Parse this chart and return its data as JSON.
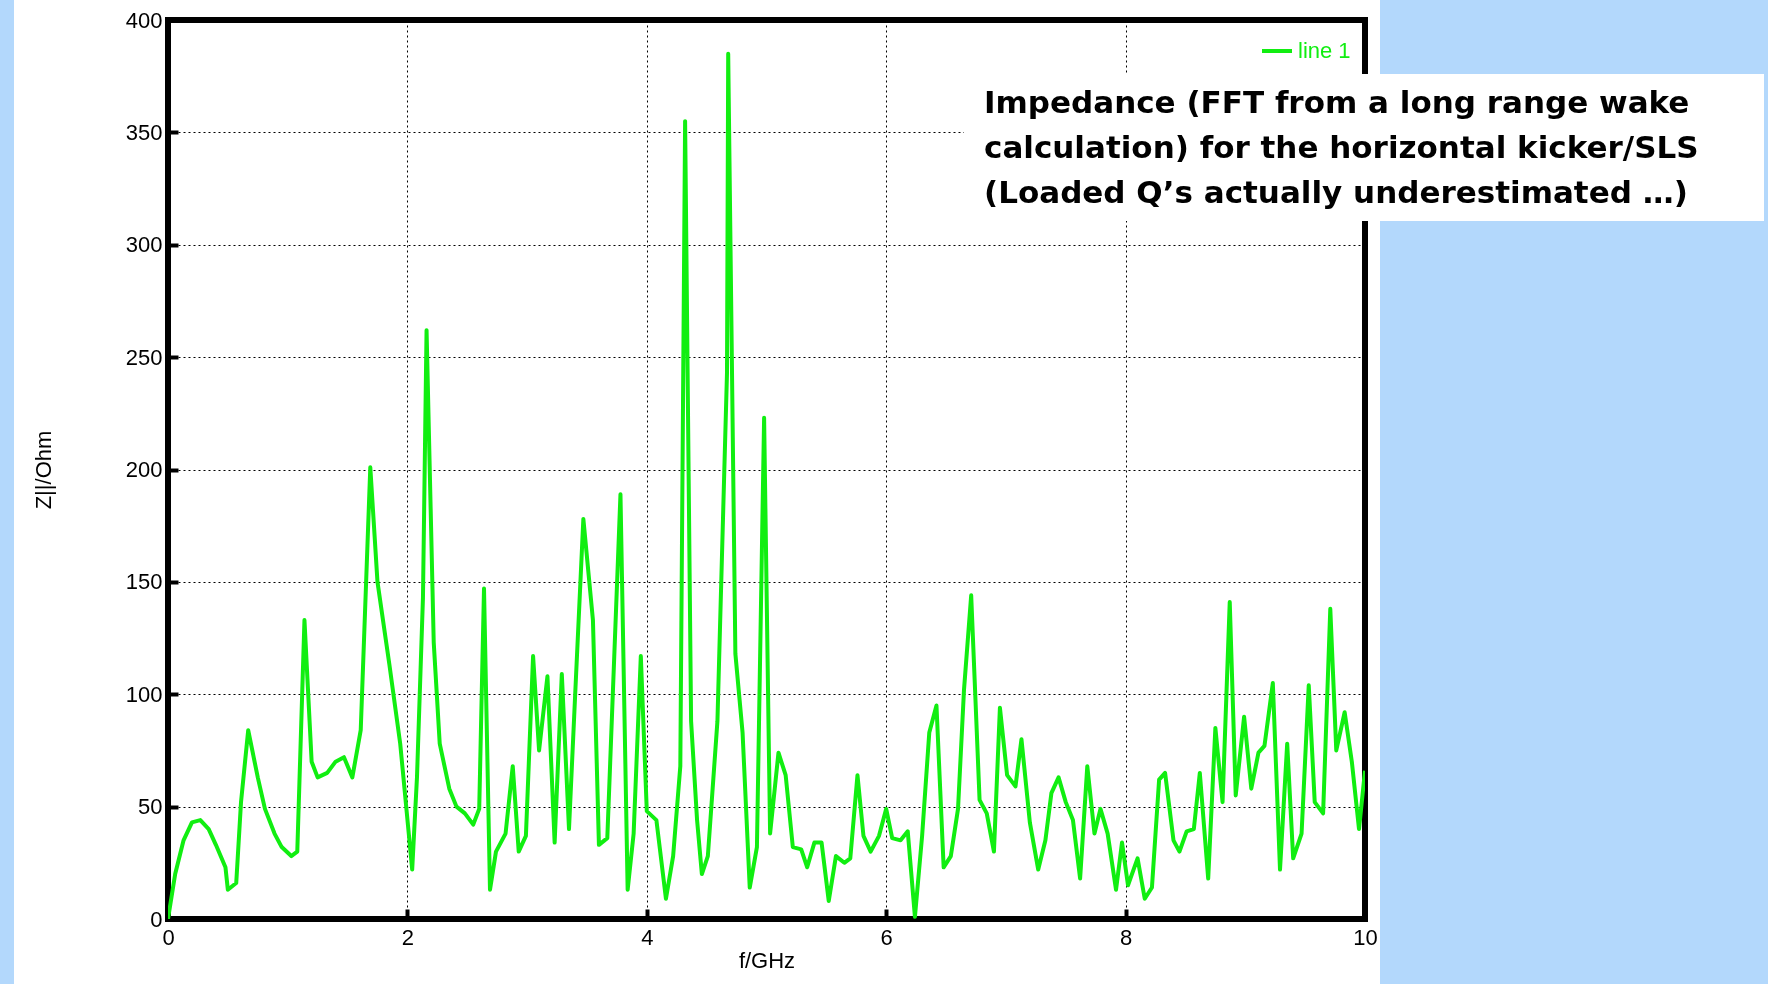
{
  "chart_data": {
    "type": "line",
    "xlabel": "f/GHz",
    "ylabel": "Z||/Ohm",
    "annotations": [
      "Impedance (FFT from a long range wake calculation) for the horizontal kicker/SLS (Loaded Q’s actually underestimated …)"
    ],
    "xlim": [
      0,
      10
    ],
    "xticks": [
      0,
      2,
      4,
      6,
      8,
      10
    ],
    "ylim": [
      0,
      400
    ],
    "yticks": [
      0,
      50,
      100,
      150,
      200,
      250,
      300,
      350,
      400
    ],
    "grid": true,
    "legend": "top right",
    "marker": "none",
    "line_style": "solid",
    "series": [
      {
        "name": "line 1",
        "color": "#11ee11",
        "x": [
          0,
          0.06,
          0.13,
          0.2,
          0.27,
          0.34,
          0.4,
          0.48,
          0.5,
          0.57,
          0.61,
          0.67,
          0.75,
          0.81,
          0.89,
          0.95,
          1.03,
          1.08,
          1.14,
          1.2,
          1.25,
          1.33,
          1.4,
          1.47,
          1.54,
          1.61,
          1.69,
          1.75,
          1.85,
          1.94,
          2.04,
          2.08,
          2.13,
          2.16,
          2.22,
          2.27,
          2.35,
          2.41,
          2.48,
          2.55,
          2.6,
          2.64,
          2.69,
          2.74,
          2.82,
          2.88,
          2.93,
          2.99,
          3.05,
          3.1,
          3.17,
          3.23,
          3.29,
          3.35,
          3.4,
          3.47,
          3.55,
          3.6,
          3.67,
          3.78,
          3.84,
          3.89,
          3.95,
          4.0,
          4.08,
          4.16,
          4.22,
          4.28,
          4.32,
          4.37,
          4.42,
          4.46,
          4.51,
          4.59,
          4.67,
          4.68,
          4.74,
          4.8,
          4.86,
          4.92,
          4.98,
          5.03,
          5.1,
          5.16,
          5.22,
          5.29,
          5.34,
          5.4,
          5.46,
          5.52,
          5.58,
          5.65,
          5.7,
          5.76,
          5.81,
          5.87,
          5.94,
          6.0,
          6.05,
          6.12,
          6.18,
          6.24,
          6.3,
          6.36,
          6.42,
          6.48,
          6.54,
          6.6,
          6.65,
          6.71,
          6.78,
          6.84,
          6.9,
          6.95,
          7.01,
          7.08,
          7.13,
          7.2,
          7.27,
          7.33,
          7.38,
          7.44,
          7.5,
          7.56,
          7.62,
          7.68,
          7.74,
          7.79,
          7.85,
          7.92,
          7.97,
          8.02,
          8.1,
          8.16,
          8.22,
          8.28,
          8.33,
          8.4,
          8.45,
          8.51,
          8.57,
          8.62,
          8.69,
          8.75,
          8.81,
          8.87,
          8.92,
          8.99,
          9.05,
          9.11,
          9.16,
          9.23,
          9.29,
          9.35,
          9.4,
          9.47,
          9.53,
          9.58,
          9.65,
          9.71,
          9.76,
          9.83,
          9.89,
          9.95,
          10.0
        ],
        "values": [
          0,
          20,
          35,
          43,
          44,
          40,
          33,
          23,
          13,
          16,
          52,
          84,
          63,
          49,
          38,
          32,
          28,
          30,
          133,
          70,
          63,
          65,
          70,
          72,
          63,
          84,
          201,
          150,
          113,
          78,
          22,
          63,
          143,
          262,
          123,
          78,
          58,
          50,
          47,
          42,
          49,
          147,
          13,
          30,
          38,
          68,
          30,
          37,
          117,
          75,
          108,
          34,
          109,
          40,
          98,
          178,
          133,
          33,
          36,
          189,
          13,
          38,
          117,
          48,
          44,
          9,
          28,
          68,
          355,
          88,
          44,
          20,
          28,
          88,
          243,
          385,
          118,
          83,
          14,
          32,
          223,
          38,
          74,
          64,
          32,
          31,
          23,
          34,
          34,
          8,
          28,
          25,
          27,
          64,
          37,
          30,
          37,
          49,
          36,
          35,
          39,
          1,
          37,
          83,
          95,
          23,
          28,
          49,
          102,
          144,
          53,
          47,
          30,
          94,
          64,
          59,
          80,
          43,
          22,
          35,
          56,
          63,
          52,
          44,
          18,
          68,
          38,
          49,
          38,
          13,
          34,
          15,
          27,
          9,
          14,
          62,
          65,
          35,
          30,
          39,
          40,
          65,
          18,
          85,
          52,
          141,
          55,
          90,
          58,
          74,
          77,
          105,
          22,
          78,
          27,
          38,
          104,
          52,
          47,
          138,
          75,
          92,
          70,
          40,
          66
        ]
      }
    ]
  }
}
